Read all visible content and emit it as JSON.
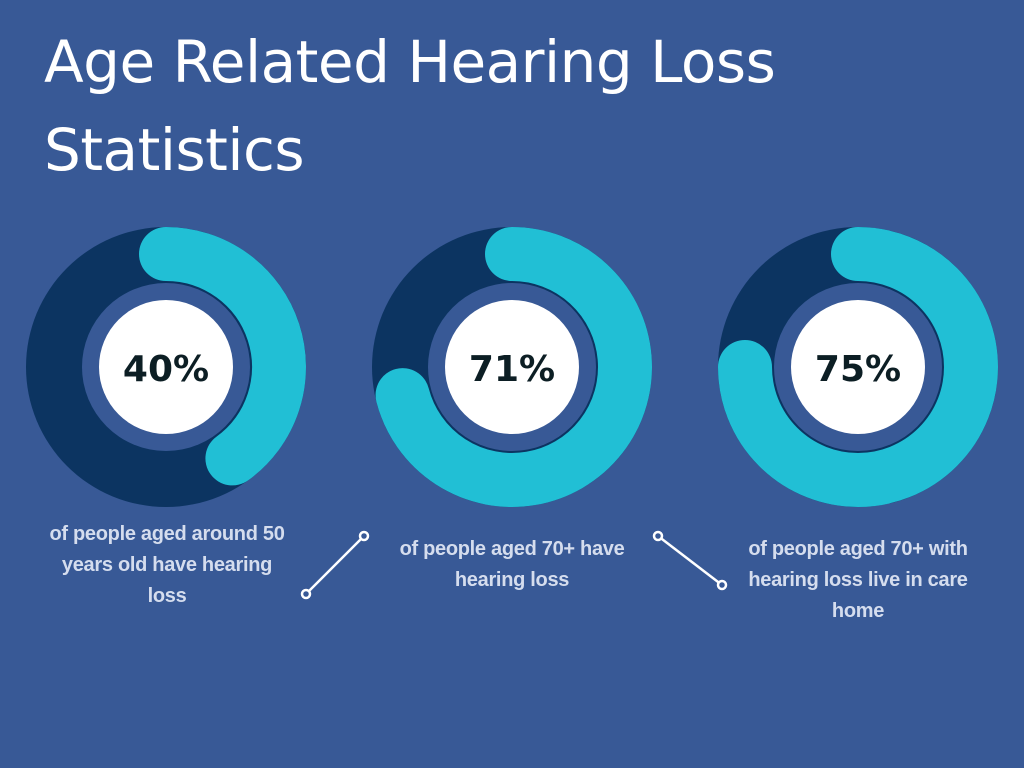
{
  "title": "Age Related Hearing Loss Statistics",
  "colors": {
    "background": "#385996",
    "track": "#0c3461",
    "progress": "#21bfd5",
    "center": "#ffffff",
    "label": "#0c1e24",
    "caption": "#d5ddee"
  },
  "chart_data": {
    "type": "pie",
    "items": [
      {
        "label": "40%",
        "value": 40,
        "caption": "of people aged around 50 years old have hearing loss"
      },
      {
        "label": "71%",
        "value": 71,
        "caption": "of people aged 70+ have hearing loss"
      },
      {
        "label": "75%",
        "value": 75,
        "caption": "of people aged 70+ with hearing loss live in care home"
      }
    ]
  }
}
